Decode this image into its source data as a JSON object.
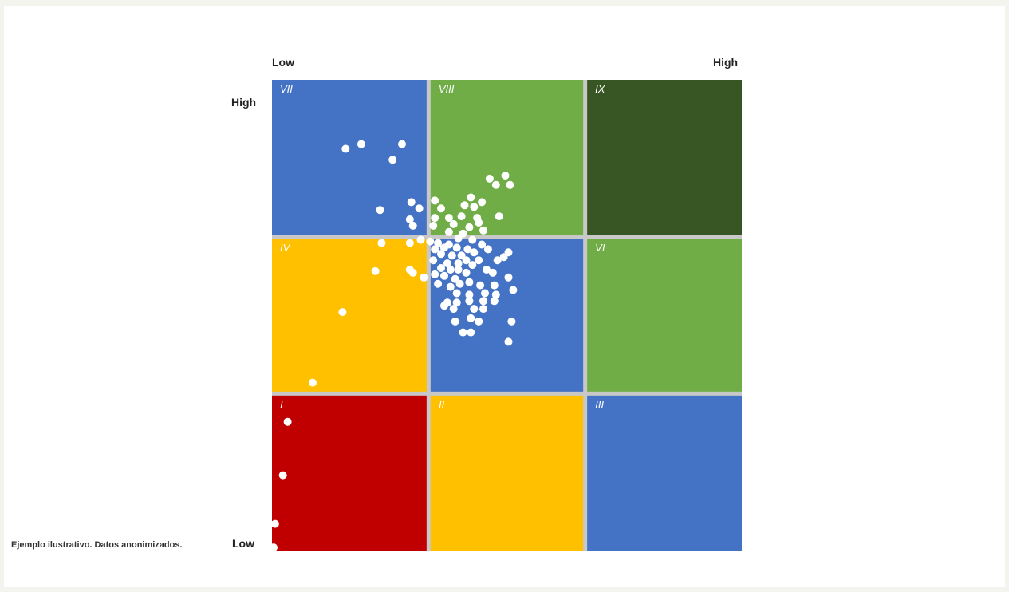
{
  "labels": {
    "x_low": "Low",
    "x_high": "High",
    "y_high": "High",
    "y_low": "Low",
    "footnote": "Ejemplo ilustrativo. Datos anonimizados."
  },
  "colors": {
    "blue": "#4472c4",
    "green": "#70ad47",
    "dark_green": "#375623",
    "yellow": "#ffc000",
    "red": "#c00000",
    "gap": "#c8c8c8",
    "point": "#ffffff"
  },
  "chart_data": {
    "type": "scatter",
    "xlim": [
      0,
      3
    ],
    "ylim": [
      0,
      3
    ],
    "grid_cells": [
      {
        "label": "VII",
        "col": 0,
        "row": 2,
        "color": "blue"
      },
      {
        "label": "VIII",
        "col": 1,
        "row": 2,
        "color": "green"
      },
      {
        "label": "IX",
        "col": 2,
        "row": 2,
        "color": "dark_green"
      },
      {
        "label": "IV",
        "col": 0,
        "row": 1,
        "color": "yellow"
      },
      {
        "label": "V",
        "col": 1,
        "row": 1,
        "color": "blue"
      },
      {
        "label": "VI",
        "col": 2,
        "row": 1,
        "color": "green"
      },
      {
        "label": "I",
        "col": 0,
        "row": 0,
        "color": "red"
      },
      {
        "label": "II",
        "col": 1,
        "row": 0,
        "color": "yellow"
      },
      {
        "label": "III",
        "col": 2,
        "row": 0,
        "color": "blue"
      }
    ],
    "points": [
      [
        0.47,
        2.56
      ],
      [
        0.57,
        2.59
      ],
      [
        0.77,
        2.49
      ],
      [
        0.83,
        2.59
      ],
      [
        1.39,
        2.37
      ],
      [
        1.43,
        2.33
      ],
      [
        1.49,
        2.39
      ],
      [
        1.52,
        2.33
      ],
      [
        0.69,
        2.17
      ],
      [
        0.89,
        2.22
      ],
      [
        0.94,
        2.18
      ],
      [
        0.88,
        2.11
      ],
      [
        0.9,
        2.07
      ],
      [
        1.04,
        2.23
      ],
      [
        1.08,
        2.18
      ],
      [
        1.23,
        2.2
      ],
      [
        1.27,
        2.25
      ],
      [
        1.29,
        2.19
      ],
      [
        1.34,
        2.22
      ],
      [
        1.45,
        2.13
      ],
      [
        1.13,
        2.12
      ],
      [
        1.21,
        2.13
      ],
      [
        1.31,
        2.12
      ],
      [
        1.04,
        2.12
      ],
      [
        1.03,
        2.07
      ],
      [
        1.16,
        2.08
      ],
      [
        1.26,
        2.06
      ],
      [
        1.32,
        2.09
      ],
      [
        1.35,
        2.04
      ],
      [
        1.22,
        2.02
      ],
      [
        1.28,
        1.98
      ],
      [
        1.13,
        2.03
      ],
      [
        1.19,
        1.99
      ],
      [
        0.7,
        1.96
      ],
      [
        0.88,
        1.96
      ],
      [
        0.95,
        1.98
      ],
      [
        1.01,
        1.97
      ],
      [
        1.06,
        1.96
      ],
      [
        1.1,
        1.93
      ],
      [
        1.13,
        1.95
      ],
      [
        1.18,
        1.93
      ],
      [
        1.25,
        1.92
      ],
      [
        1.34,
        1.95
      ],
      [
        1.04,
        1.92
      ],
      [
        1.08,
        1.89
      ],
      [
        1.15,
        1.88
      ],
      [
        1.21,
        1.88
      ],
      [
        1.29,
        1.9
      ],
      [
        1.38,
        1.92
      ],
      [
        1.44,
        1.85
      ],
      [
        1.48,
        1.87
      ],
      [
        1.51,
        1.9
      ],
      [
        1.03,
        1.85
      ],
      [
        1.12,
        1.83
      ],
      [
        1.19,
        1.83
      ],
      [
        1.24,
        1.85
      ],
      [
        1.32,
        1.85
      ],
      [
        1.08,
        1.8
      ],
      [
        1.14,
        1.79
      ],
      [
        1.19,
        1.79
      ],
      [
        1.28,
        1.82
      ],
      [
        0.66,
        1.78
      ],
      [
        0.88,
        1.79
      ],
      [
        0.9,
        1.77
      ],
      [
        0.97,
        1.74
      ],
      [
        1.04,
        1.76
      ],
      [
        1.1,
        1.75
      ],
      [
        1.17,
        1.73
      ],
      [
        1.24,
        1.77
      ],
      [
        1.37,
        1.79
      ],
      [
        1.41,
        1.77
      ],
      [
        1.51,
        1.74
      ],
      [
        1.06,
        1.7
      ],
      [
        1.14,
        1.68
      ],
      [
        1.2,
        1.7
      ],
      [
        1.26,
        1.71
      ],
      [
        1.33,
        1.69
      ],
      [
        1.42,
        1.69
      ],
      [
        1.54,
        1.66
      ],
      [
        1.18,
        1.64
      ],
      [
        1.26,
        1.63
      ],
      [
        1.36,
        1.64
      ],
      [
        1.43,
        1.63
      ],
      [
        1.12,
        1.58
      ],
      [
        1.18,
        1.58
      ],
      [
        1.26,
        1.59
      ],
      [
        1.35,
        1.59
      ],
      [
        1.42,
        1.59
      ],
      [
        1.1,
        1.56
      ],
      [
        1.16,
        1.54
      ],
      [
        1.29,
        1.54
      ],
      [
        1.35,
        1.54
      ],
      [
        0.45,
        1.52
      ],
      [
        1.17,
        1.46
      ],
      [
        1.27,
        1.48
      ],
      [
        1.32,
        1.46
      ],
      [
        1.53,
        1.46
      ],
      [
        1.22,
        1.39
      ],
      [
        1.27,
        1.39
      ],
      [
        1.51,
        1.33
      ],
      [
        0.26,
        1.07
      ],
      [
        0.1,
        0.82
      ],
      [
        0.07,
        0.48
      ],
      [
        0.02,
        0.17
      ],
      [
        0.01,
        0.02
      ]
    ]
  }
}
